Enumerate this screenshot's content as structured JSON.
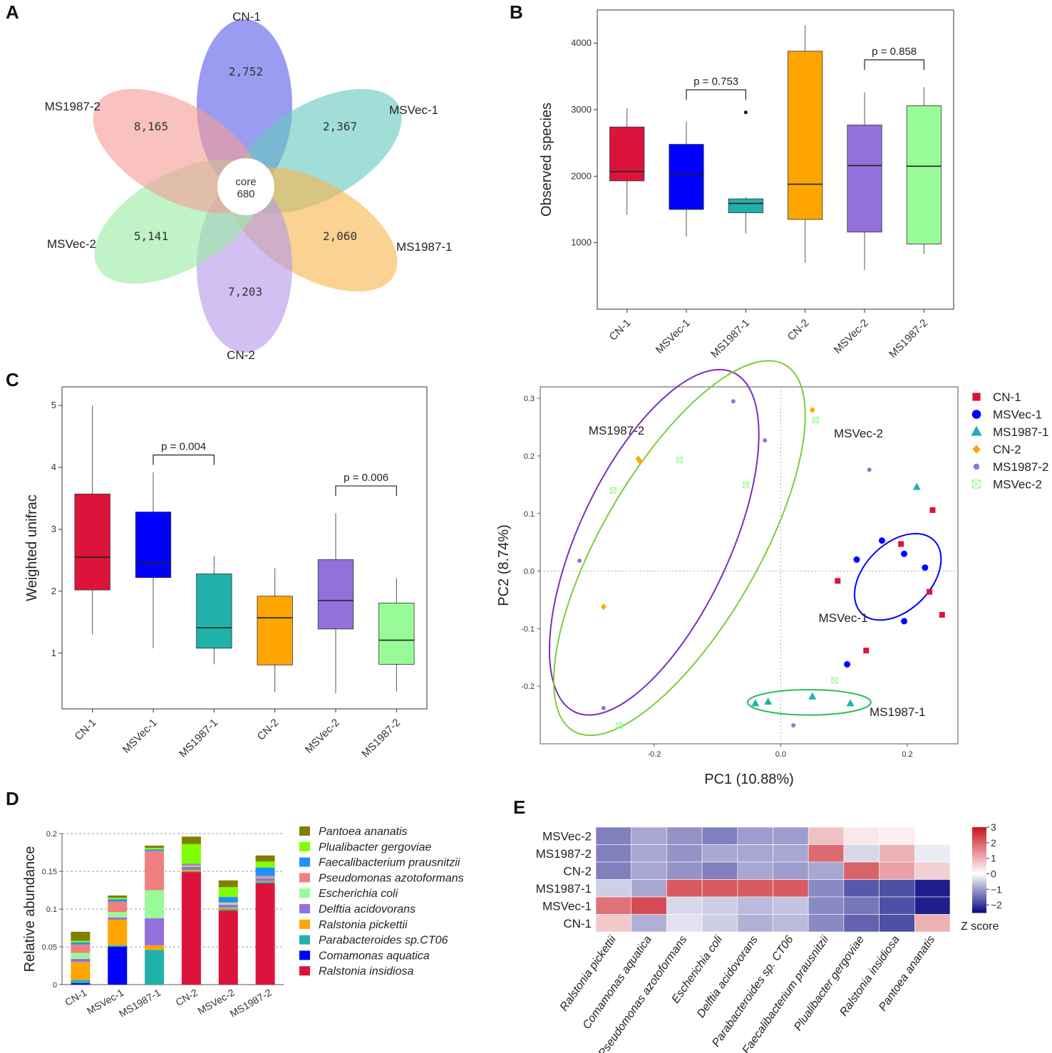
{
  "panels": {
    "A": "A",
    "B": "B",
    "C": "C",
    "D": "D",
    "E": "E"
  },
  "chart_data": [
    {
      "panel": "A",
      "type": "venn_flower",
      "petals": [
        {
          "label": "CN-1",
          "count": "2,752",
          "color": "#5b60e8"
        },
        {
          "label": "MSVec-1",
          "count": "2,367",
          "color": "#67c9bf"
        },
        {
          "label": "MS1987-1",
          "count": "2,060",
          "color": "#f7b64f"
        },
        {
          "label": "CN-2",
          "count": "7,203",
          "color": "#b49ae9"
        },
        {
          "label": "MSVec-2",
          "count": "5,141",
          "color": "#9aeba2"
        },
        {
          "label": "MS1987-2",
          "count": "8,165",
          "color": "#f59c97"
        }
      ],
      "core_label": "core",
      "core_value": "680"
    },
    {
      "panel": "B",
      "type": "box",
      "ylabel": "Observed species",
      "ylim": [
        0,
        4500
      ],
      "yticks": [
        1000,
        2000,
        3000,
        4000
      ],
      "groups": [
        {
          "name": "CN-1",
          "color": "#dc143c",
          "whisker_low": 1420,
          "q1": 1930,
          "median": 2070,
          "q3": 2740,
          "whisker_high": 3020,
          "outliers": []
        },
        {
          "name": "MSVec-1",
          "color": "#0000ff",
          "whisker_low": 1090,
          "q1": 1500,
          "median": 2030,
          "q3": 2480,
          "whisker_high": 2820,
          "outliers": []
        },
        {
          "name": "MS1987-1",
          "color": "#20b2aa",
          "whisker_low": 1140,
          "q1": 1450,
          "median": 1590,
          "q3": 1660,
          "whisker_high": 1690,
          "outliers": [
            2960
          ]
        },
        {
          "name": "CN-2",
          "color": "#ffa500",
          "whisker_low": 700,
          "q1": 1350,
          "median": 1880,
          "q3": 3880,
          "whisker_high": 4270,
          "outliers": []
        },
        {
          "name": "MSVec-2",
          "color": "#9370db",
          "whisker_low": 590,
          "q1": 1160,
          "median": 2160,
          "q3": 2770,
          "whisker_high": 3260,
          "outliers": []
        },
        {
          "name": "MS1987-2",
          "color": "#98fb98",
          "whisker_low": 830,
          "q1": 980,
          "median": 2150,
          "q3": 3060,
          "whisker_high": 3340,
          "outliers": []
        }
      ],
      "comparisons": [
        {
          "from": "MSVec-1",
          "to": "MS1987-1",
          "label": "p = 0.753",
          "y": 3300
        },
        {
          "from": "MSVec-2",
          "to": "MS1987-2",
          "label": "p = 0.858",
          "y": 3750
        }
      ]
    },
    {
      "panel": "C",
      "type": "box",
      "ylabel": "Weighted unifrac",
      "ylim": [
        0.1,
        5.3
      ],
      "yticks": [
        1,
        2,
        3,
        4,
        5
      ],
      "groups": [
        {
          "name": "CN-1",
          "color": "#dc143c",
          "whisker_low": 1.3,
          "q1": 2.02,
          "median": 2.55,
          "q3": 3.57,
          "whisker_high": 5.0,
          "outliers": []
        },
        {
          "name": "MSVec-1",
          "color": "#0000ff",
          "whisker_low": 1.08,
          "q1": 2.22,
          "median": 2.46,
          "q3": 3.28,
          "whisker_high": 3.92,
          "outliers": []
        },
        {
          "name": "MS1987-1",
          "color": "#20b2aa",
          "whisker_low": 0.82,
          "q1": 1.08,
          "median": 1.41,
          "q3": 2.28,
          "whisker_high": 2.57,
          "outliers": []
        },
        {
          "name": "CN-2",
          "color": "#ffa500",
          "whisker_low": 0.37,
          "q1": 0.81,
          "median": 1.57,
          "q3": 1.92,
          "whisker_high": 2.37,
          "outliers": []
        },
        {
          "name": "MSVec-2",
          "color": "#9370db",
          "whisker_low": 0.35,
          "q1": 1.39,
          "median": 1.85,
          "q3": 2.51,
          "whisker_high": 3.26,
          "outliers": []
        },
        {
          "name": "MS1987-2",
          "color": "#98fb98",
          "whisker_low": 0.38,
          "q1": 0.82,
          "median": 1.21,
          "q3": 1.81,
          "whisker_high": 2.21,
          "outliers": []
        }
      ],
      "comparisons": [
        {
          "from": "MSVec-1",
          "to": "MS1987-1",
          "label": "p = 0.004",
          "y": 4.2
        },
        {
          "from": "MSVec-2",
          "to": "MS1987-2",
          "label": "p = 0.006",
          "y": 3.7
        }
      ]
    },
    {
      "panel": "C-right",
      "type": "scatter",
      "xlabel": "PC1 (10.88%)",
      "ylabel": "PC2 (8.74%)",
      "xlim": [
        -0.38,
        0.28
      ],
      "ylim": [
        -0.3,
        0.32
      ],
      "xticks": [
        -0.2,
        0.0,
        0.2
      ],
      "xtick_labels": [
        "-0.2",
        "0.0",
        "0.2"
      ],
      "yticks": [
        0.3,
        0.2,
        0.1,
        0.0,
        -0.1,
        -0.2
      ],
      "ytick_labels": [
        "0.3",
        "0.2",
        "0.1",
        "0.0",
        "-0.1",
        "-0.2"
      ],
      "legend": [
        {
          "name": "CN-1",
          "color": "#dc143c",
          "marker": "square"
        },
        {
          "name": "MSVec-1",
          "color": "#0000ff",
          "marker": "circle"
        },
        {
          "name": "MS1987-1",
          "color": "#20b2aa",
          "marker": "triangle"
        },
        {
          "name": "CN-2",
          "color": "#ffa500",
          "marker": "diamond"
        },
        {
          "name": "MS1987-2",
          "color": "#9370db",
          "marker": "smallcircle"
        },
        {
          "name": "MSVec-2",
          "color": "#98fb98",
          "marker": "crossbox"
        }
      ],
      "series": [
        {
          "name": "CN-1",
          "color": "#dc143c",
          "marker": "square",
          "points": [
            [
              0.24,
              0.106
            ],
            [
              0.19,
              0.047
            ],
            [
              0.09,
              -0.017
            ],
            [
              0.235,
              -0.036
            ],
            [
              0.255,
              -0.076
            ],
            [
              0.135,
              -0.138
            ]
          ]
        },
        {
          "name": "MSVec-1",
          "color": "#0000ff",
          "marker": "circle",
          "points": [
            [
              0.16,
              0.053
            ],
            [
              0.12,
              0.02
            ],
            [
              0.195,
              0.03
            ],
            [
              0.228,
              0.006
            ],
            [
              0.195,
              -0.087
            ],
            [
              0.105,
              -0.162
            ]
          ]
        },
        {
          "name": "MS1987-1",
          "color": "#20b2aa",
          "marker": "triangle",
          "points": [
            [
              0.215,
              0.146
            ],
            [
              -0.04,
              -0.23
            ],
            [
              -0.02,
              -0.227
            ],
            [
              0.05,
              -0.218
            ],
            [
              0.11,
              -0.23
            ]
          ]
        },
        {
          "name": "CN-2",
          "color": "#ffa500",
          "marker": "diamond",
          "points": [
            [
              0.05,
              0.28
            ],
            [
              -0.225,
              0.195
            ],
            [
              -0.222,
              0.19
            ],
            [
              -0.28,
              -0.062
            ]
          ]
        },
        {
          "name": "MS1987-2",
          "color": "#9370db",
          "marker": "smallcircle",
          "points": [
            [
              -0.075,
              0.295
            ],
            [
              -0.025,
              0.227
            ],
            [
              0.14,
              0.176
            ],
            [
              -0.318,
              0.018
            ],
            [
              -0.28,
              -0.238
            ],
            [
              0.02,
              -0.268
            ]
          ]
        },
        {
          "name": "MSVec-2",
          "color": "#98fb98",
          "marker": "crossbox",
          "points": [
            [
              0.055,
              0.262
            ],
            [
              -0.16,
              0.193
            ],
            [
              -0.265,
              0.14
            ],
            [
              -0.055,
              0.15
            ],
            [
              0.085,
              -0.19
            ],
            [
              -0.255,
              -0.268
            ]
          ]
        }
      ],
      "ellipses": [
        {
          "label": "MS1987-2",
          "color": "#7b2fbe",
          "cx": -0.2,
          "cy": 0.05,
          "rx": 0.31,
          "ry": 0.125,
          "angle_deg": -65
        },
        {
          "label": "MSVec-2",
          "color": "#7ccd3c",
          "cx": -0.16,
          "cy": 0.04,
          "rx": 0.35,
          "ry": 0.13,
          "angle_deg": -60
        },
        {
          "label": "MSVec-1",
          "color": "#0000ff",
          "cx": 0.185,
          "cy": -0.01,
          "rx": 0.085,
          "ry": 0.055,
          "angle_deg": -45
        },
        {
          "label": "MS1987-1",
          "color": "#2ebd5a",
          "cx": 0.045,
          "cy": -0.228,
          "rx": 0.102,
          "ry": 0.021,
          "angle_deg": 0
        }
      ]
    },
    {
      "panel": "D",
      "type": "stacked_bar",
      "ylabel": "Relative abundance",
      "ylim": [
        0,
        0.2
      ],
      "yticks": [
        0,
        0.05,
        0.1,
        0.15,
        0.2
      ],
      "ytick_labels": [
        "0",
        "0.05",
        "0.1",
        "0.15",
        "0.2"
      ],
      "categories": [
        "CN-1",
        "MSVec-1",
        "MS1987-1",
        "CN-2",
        "MSVec-2",
        "MS1987-2"
      ],
      "series": [
        {
          "name": "Ralstonia insidiosa",
          "color": "#dc143c",
          "values": [
            0.0,
            0.0,
            0.0,
            0.149,
            0.098,
            0.134
          ]
        },
        {
          "name": "Comamonas aquatica",
          "color": "#0000ff",
          "values": [
            0.002,
            0.05,
            0.0,
            0.0,
            0.0,
            0.0
          ]
        },
        {
          "name": "Parabacteroides sp.CT06",
          "color": "#20b2aa",
          "values": [
            0.004,
            0.002,
            0.046,
            0.001,
            0.002,
            0.002
          ]
        },
        {
          "name": "Ralstonia pickettii",
          "color": "#ffa500",
          "values": [
            0.024,
            0.034,
            0.006,
            0.002,
            0.002,
            0.001
          ]
        },
        {
          "name": "Delftia acidovorans",
          "color": "#9370db",
          "values": [
            0.004,
            0.003,
            0.036,
            0.004,
            0.004,
            0.004
          ]
        },
        {
          "name": "Escherichia coli",
          "color": "#98fb98",
          "values": [
            0.008,
            0.007,
            0.037,
            0.001,
            0.002,
            0.001
          ]
        },
        {
          "name": "Pseudomonas azotoformans",
          "color": "#f08080",
          "values": [
            0.011,
            0.014,
            0.052,
            0.002,
            0.001,
            0.002
          ]
        },
        {
          "name": "Faecalibacterium prausnitzii",
          "color": "#1e90ff",
          "values": [
            0.003,
            0.003,
            0.002,
            0.001,
            0.007,
            0.011
          ]
        },
        {
          "name": "Plualibacter gergoviae",
          "color": "#7fff00",
          "values": [
            0.002,
            0.002,
            0.002,
            0.026,
            0.013,
            0.008
          ]
        },
        {
          "name": "Pantoea ananatis",
          "color": "#808000",
          "values": [
            0.012,
            0.003,
            0.003,
            0.01,
            0.009,
            0.008
          ]
        }
      ],
      "legend": [
        "Pantoea ananatis",
        "Plualibacter gergoviae",
        "Faecalibacterium prausnitzii",
        "Pseudomonas azotoformans",
        "Escherichia coli",
        "Delftia acidovorans",
        "Ralstonia pickettii",
        "Parabacteroides sp.CT06",
        "Comamonas aquatica",
        "Ralstonia insidiosa"
      ]
    },
    {
      "panel": "E",
      "type": "heatmap",
      "rows": [
        "MSVec-2",
        "MS1987-2",
        "CN-2",
        "MS1987-1",
        "MSVec-1",
        "CN-1"
      ],
      "columns": [
        "Ralstonia pickettii",
        "Comamonas aquatica",
        "Pseudomonas azotoformans",
        "Escherichia coli",
        "Delftia acidovorans",
        "Parabacteroides sp. CT06",
        "Faecalibacterium prausnitzii",
        "Plualibacter gergoviae",
        "Ralstonia insidiosa",
        "Pantoea ananatis"
      ],
      "values": [
        [
          -1.3,
          -0.9,
          -1.1,
          -1.3,
          -1.0,
          -1.0,
          0.8,
          0.3,
          0.2,
          0.0
        ],
        [
          -1.3,
          -0.9,
          -1.1,
          -0.9,
          -0.9,
          -0.9,
          1.9,
          -0.4,
          1.0,
          -0.2
        ],
        [
          -1.3,
          -0.9,
          -1.1,
          -1.3,
          -0.9,
          -1.0,
          -0.9,
          2.0,
          1.2,
          0.6
        ],
        [
          -0.5,
          -0.9,
          2.1,
          2.1,
          2.1,
          2.1,
          -1.2,
          -1.7,
          -1.8,
          -2.3
        ],
        [
          1.8,
          2.3,
          -0.4,
          -0.5,
          -0.7,
          -0.6,
          -1.2,
          -1.4,
          -1.8,
          -2.3
        ],
        [
          0.7,
          -0.8,
          -0.3,
          -0.5,
          -0.8,
          -0.7,
          -1.2,
          -1.6,
          -1.8,
          1.0
        ]
      ],
      "scale": {
        "min": -2.5,
        "max": 3,
        "ticks": [
          3,
          2,
          1,
          0,
          -1,
          -2
        ],
        "tick_labels": [
          "3",
          "2",
          "1",
          "0",
          "−1",
          "−2"
        ],
        "title": "Z  score"
      }
    }
  ]
}
